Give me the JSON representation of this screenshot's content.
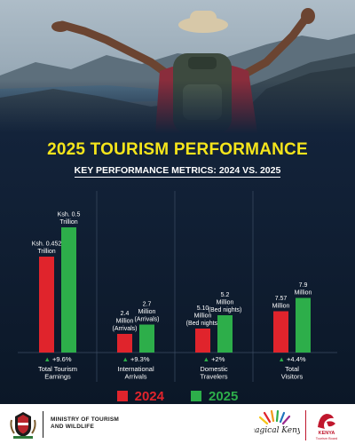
{
  "header": {
    "title": "2025 TOURISM PERFORMANCE",
    "subtitle": "KEY PERFORMANCE METRICS: 2024 VS. 2025"
  },
  "colors": {
    "series_2024": "#e0242c",
    "series_2025": "#2dae4a",
    "title": "#f5e51b",
    "change_arrow": "#2dae4a"
  },
  "chart_data": {
    "type": "bar",
    "categories": [
      "Total Tourism Earnings",
      "International Arrivals",
      "Domestic Travelers",
      "Total Visitors"
    ],
    "category_lines": [
      [
        "Total Tourism",
        "Earnings"
      ],
      [
        "International",
        "Arrivals"
      ],
      [
        "Domestic",
        "Travelers"
      ],
      [
        "Total",
        "Visitors"
      ]
    ],
    "series": [
      {
        "name": "2024",
        "bar_values": [
          72,
          14,
          18,
          31
        ],
        "labels": [
          [
            "Ksh. 0.452",
            "Trillion"
          ],
          [
            "2.4",
            "Million",
            "(Arrivals)"
          ],
          [
            "5.10",
            "Million",
            "(Bed nights)"
          ],
          [
            "7.57",
            "Million"
          ]
        ]
      },
      {
        "name": "2025",
        "bar_values": [
          94,
          21,
          28,
          41
        ],
        "labels": [
          [
            "Ksh. 0.5",
            "Trillion"
          ],
          [
            "2.7",
            "Million",
            "(Arrivals)"
          ],
          [
            "5.2",
            "Million",
            "(Bed nights)"
          ],
          [
            "7.9",
            "Million"
          ]
        ]
      }
    ],
    "changes": [
      "+9.6%",
      "+9.3%",
      "+2%",
      "+4.4%"
    ],
    "ylim": [
      0,
      100
    ],
    "grid": false,
    "legend_position": "bottom-center"
  },
  "legend": {
    "items": [
      {
        "label": "2024",
        "color": "#e0242c"
      },
      {
        "label": "2025",
        "color": "#2dae4a"
      }
    ]
  },
  "footer": {
    "ministry_line1": "MINISTRY OF TOURISM",
    "ministry_line2": "AND WILDLIFE",
    "brand_text": "magical Kenya",
    "ktb_name": "KENYA",
    "ktb_sub": "Tourism Board"
  }
}
